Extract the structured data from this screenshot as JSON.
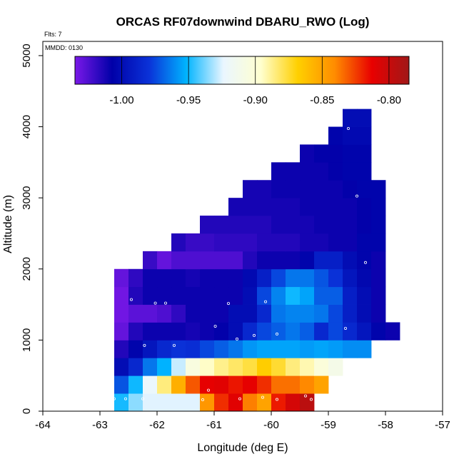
{
  "chart_data": {
    "type": "heatmap",
    "title": "ORCAS RF07downwind DBARU_RWO (Log)",
    "xlabel": "Longitude (deg E)",
    "ylabel": "Altitude (m)",
    "flights_label": "Flts: 7",
    "date_label": "MMDD: 0130",
    "xlim": [
      -64,
      -57
    ],
    "ylim": [
      0,
      5200
    ],
    "x_ticks": [
      -64,
      -63,
      -62,
      -61,
      -60,
      -59,
      -58,
      -57
    ],
    "x_tick_labels": [
      "-64",
      "-63",
      "-62",
      "-61",
      "-60",
      "-59",
      "-58",
      "-57"
    ],
    "y_ticks": [
      0,
      1000,
      2000,
      3000,
      4000,
      5000
    ],
    "y_tick_labels": [
      "0",
      "1000",
      "2000",
      "3000",
      "4000",
      "5000"
    ],
    "cell_width_deg": 0.25,
    "cell_height_m": 250,
    "colorbar": {
      "range": [
        -1.035,
        -0.785
      ],
      "ticks": [
        -1.0,
        -0.95,
        -0.9,
        -0.85,
        -0.8
      ],
      "tick_labels": [
        "-1.00",
        "-0.95",
        "-0.90",
        "-0.85",
        "-0.80"
      ],
      "stops": [
        "#7a18e8",
        "#0000a8",
        "#0a32d8",
        "#00b4ff",
        "#eaf6ff",
        "#ffffd0",
        "#ffd000",
        "#ff8c00",
        "#e80000",
        "#a01818"
      ]
    },
    "rows": [
      {
        "alt": 0,
        "cells": [
          [
            -62.75,
            -0.949
          ],
          [
            -62.5,
            -0.935
          ],
          [
            -62.25,
            -0.925
          ],
          [
            -62.0,
            -0.925
          ],
          [
            -61.75,
            -0.925
          ],
          [
            -61.5,
            -0.925
          ],
          [
            -61.25,
            -0.845
          ],
          [
            -61.0,
            -0.822
          ],
          [
            -60.75,
            -0.81
          ],
          [
            -60.5,
            -0.838
          ],
          [
            -60.25,
            -0.85
          ],
          [
            -60.0,
            -0.818
          ],
          [
            -59.75,
            -0.805
          ],
          [
            -59.5,
            -0.795
          ]
        ]
      },
      {
        "alt": 250,
        "cells": [
          [
            -62.75,
            -0.972
          ],
          [
            -62.5,
            -0.95
          ],
          [
            -62.25,
            -0.922
          ],
          [
            -62.0,
            -0.885
          ],
          [
            -61.75,
            -0.855
          ],
          [
            -61.5,
            -0.83
          ],
          [
            -61.25,
            -0.812
          ],
          [
            -61.0,
            -0.81
          ],
          [
            -60.75,
            -0.817
          ],
          [
            -60.5,
            -0.812
          ],
          [
            -60.25,
            -0.822
          ],
          [
            -60.0,
            -0.835
          ],
          [
            -59.75,
            -0.835
          ],
          [
            -59.5,
            -0.84
          ],
          [
            -59.25,
            -0.85
          ]
        ]
      },
      {
        "alt": 500,
        "cells": [
          [
            -62.75,
            -1.0
          ],
          [
            -62.5,
            -0.985
          ],
          [
            -62.25,
            -0.965
          ],
          [
            -62.0,
            -0.952
          ],
          [
            -61.75,
            -0.928
          ],
          [
            -61.5,
            -0.905
          ],
          [
            -61.25,
            -0.895
          ],
          [
            -61.0,
            -0.887
          ],
          [
            -60.75,
            -0.882
          ],
          [
            -60.5,
            -0.877
          ],
          [
            -60.25,
            -0.867
          ],
          [
            -60.0,
            -0.875
          ],
          [
            -59.75,
            -0.885
          ],
          [
            -59.5,
            -0.892
          ],
          [
            -59.25,
            -0.902
          ],
          [
            -59.0,
            -0.91
          ]
        ]
      },
      {
        "alt": 750,
        "cells": [
          [
            -62.75,
            -1.015
          ],
          [
            -62.5,
            -1.005
          ],
          [
            -62.25,
            -0.995
          ],
          [
            -62.0,
            -0.985
          ],
          [
            -61.75,
            -0.98
          ],
          [
            -61.5,
            -0.982
          ],
          [
            -61.25,
            -0.975
          ],
          [
            -61.0,
            -0.97
          ],
          [
            -60.75,
            -0.965
          ],
          [
            -60.5,
            -0.958
          ],
          [
            -60.25,
            -0.955
          ],
          [
            -60.0,
            -0.955
          ],
          [
            -59.75,
            -0.955
          ],
          [
            -59.5,
            -0.957
          ],
          [
            -59.25,
            -0.955
          ],
          [
            -59.0,
            -0.957
          ],
          [
            -58.75,
            -0.96
          ],
          [
            -58.5,
            -0.96
          ]
        ]
      },
      {
        "alt": 1000,
        "cells": [
          [
            -62.75,
            -1.03
          ],
          [
            -62.5,
            -1.015
          ],
          [
            -62.25,
            -1.01
          ],
          [
            -62.0,
            -1.01
          ],
          [
            -61.75,
            -1.01
          ],
          [
            -61.5,
            -1.012
          ],
          [
            -61.25,
            -1.01
          ],
          [
            -61.0,
            -1.008
          ],
          [
            -60.75,
            -1.0
          ],
          [
            -60.5,
            -0.985
          ],
          [
            -60.25,
            -0.975
          ],
          [
            -60.0,
            -0.97
          ],
          [
            -59.75,
            -0.965
          ],
          [
            -59.5,
            -0.97
          ],
          [
            -59.25,
            -0.985
          ],
          [
            -59.0,
            -0.975
          ],
          [
            -58.75,
            -0.985
          ],
          [
            -58.5,
            -0.995
          ],
          [
            -58.25,
            -1.005
          ],
          [
            -58.0,
            -1.01
          ]
        ]
      },
      {
        "alt": 1250,
        "cells": [
          [
            -62.75,
            -1.033
          ],
          [
            -62.5,
            -1.028
          ],
          [
            -62.25,
            -1.028
          ],
          [
            -62.0,
            -1.025
          ],
          [
            -61.75,
            -1.018
          ],
          [
            -61.5,
            -1.01
          ],
          [
            -61.25,
            -1.01
          ],
          [
            -61.0,
            -1.01
          ],
          [
            -60.75,
            -1.0
          ],
          [
            -60.5,
            -1.0
          ],
          [
            -60.25,
            -0.985
          ],
          [
            -60.0,
            -0.965
          ],
          [
            -59.75,
            -0.962
          ],
          [
            -59.5,
            -0.962
          ],
          [
            -59.25,
            -0.965
          ],
          [
            -59.0,
            -0.975
          ],
          [
            -58.75,
            -0.99
          ],
          [
            -58.5,
            -1.0
          ],
          [
            -58.25,
            -1.01
          ]
        ]
      },
      {
        "alt": 1500,
        "cells": [
          [
            -62.75,
            -1.033
          ],
          [
            -62.5,
            -1.015
          ],
          [
            -62.25,
            -1.01
          ],
          [
            -62.0,
            -1.01
          ],
          [
            -61.75,
            -1.01
          ],
          [
            -61.5,
            -1.01
          ],
          [
            -61.25,
            -1.01
          ],
          [
            -61.0,
            -1.01
          ],
          [
            -60.75,
            -1.01
          ],
          [
            -60.5,
            -1.0
          ],
          [
            -60.25,
            -0.975
          ],
          [
            -60.0,
            -0.962
          ],
          [
            -59.75,
            -0.95
          ],
          [
            -59.5,
            -0.955
          ],
          [
            -59.25,
            -0.97
          ],
          [
            -59.0,
            -0.97
          ],
          [
            -58.75,
            -0.99
          ],
          [
            -58.5,
            -1.0
          ],
          [
            -58.25,
            -1.01
          ]
        ]
      },
      {
        "alt": 1750,
        "cells": [
          [
            -62.75,
            -1.03
          ],
          [
            -62.5,
            -1.018
          ],
          [
            -62.25,
            -1.01
          ],
          [
            -62.0,
            -1.01
          ],
          [
            -61.75,
            -1.01
          ],
          [
            -61.5,
            -1.012
          ],
          [
            -61.25,
            -1.01
          ],
          [
            -61.0,
            -1.01
          ],
          [
            -60.75,
            -1.01
          ],
          [
            -60.5,
            -1.002
          ],
          [
            -60.25,
            -0.99
          ],
          [
            -60.0,
            -0.975
          ],
          [
            -59.75,
            -0.965
          ],
          [
            -59.5,
            -0.965
          ],
          [
            -59.25,
            -0.972
          ],
          [
            -59.0,
            -0.98
          ],
          [
            -58.75,
            -0.995
          ],
          [
            -58.5,
            -1.003
          ],
          [
            -58.25,
            -1.01
          ]
        ]
      },
      {
        "alt": 2000,
        "cells": [
          [
            -62.25,
            -1.02
          ],
          [
            -62.0,
            -1.03
          ],
          [
            -61.75,
            -1.025
          ],
          [
            -61.5,
            -1.025
          ],
          [
            -61.25,
            -1.025
          ],
          [
            -61.0,
            -1.025
          ],
          [
            -60.75,
            -1.025
          ],
          [
            -60.5,
            -1.015
          ],
          [
            -60.25,
            -1.01
          ],
          [
            -60.0,
            -1.01
          ],
          [
            -59.75,
            -1.01
          ],
          [
            -59.5,
            -1.005
          ],
          [
            -59.25,
            -0.99
          ],
          [
            -59.0,
            -0.99
          ],
          [
            -58.75,
            -1.0
          ],
          [
            -58.5,
            -1.005
          ],
          [
            -58.25,
            -1.01
          ]
        ]
      },
      {
        "alt": 2250,
        "cells": [
          [
            -61.75,
            -1.015
          ],
          [
            -61.5,
            -1.02
          ],
          [
            -61.25,
            -1.02
          ],
          [
            -61.0,
            -1.018
          ],
          [
            -60.75,
            -1.018
          ],
          [
            -60.5,
            -1.018
          ],
          [
            -60.25,
            -1.015
          ],
          [
            -60.0,
            -1.015
          ],
          [
            -59.75,
            -1.015
          ],
          [
            -59.5,
            -1.012
          ],
          [
            -59.25,
            -1.012
          ],
          [
            -59.0,
            -1.01
          ],
          [
            -58.75,
            -1.01
          ],
          [
            -58.5,
            -1.005
          ],
          [
            -58.25,
            -1.005
          ]
        ]
      },
      {
        "alt": 2500,
        "cells": [
          [
            -61.25,
            -1.015
          ],
          [
            -61.0,
            -1.015
          ],
          [
            -60.75,
            -1.015
          ],
          [
            -60.5,
            -1.015
          ],
          [
            -60.25,
            -1.015
          ],
          [
            -60.0,
            -1.012
          ],
          [
            -59.75,
            -1.012
          ],
          [
            -59.5,
            -1.012
          ],
          [
            -59.25,
            -1.01
          ],
          [
            -59.0,
            -1.01
          ],
          [
            -58.75,
            -1.01
          ],
          [
            -58.5,
            -1.008
          ],
          [
            -58.25,
            -1.005
          ]
        ]
      },
      {
        "alt": 2750,
        "cells": [
          [
            -60.75,
            -1.012
          ],
          [
            -60.5,
            -1.012
          ],
          [
            -60.25,
            -1.012
          ],
          [
            -60.0,
            -1.012
          ],
          [
            -59.75,
            -1.012
          ],
          [
            -59.5,
            -1.01
          ],
          [
            -59.25,
            -1.01
          ],
          [
            -59.0,
            -1.01
          ],
          [
            -58.75,
            -1.01
          ],
          [
            -58.5,
            -1.008
          ],
          [
            -58.25,
            -1.005
          ]
        ]
      },
      {
        "alt": 3000,
        "cells": [
          [
            -60.5,
            -1.012
          ],
          [
            -60.25,
            -1.012
          ],
          [
            -60.0,
            -1.01
          ],
          [
            -59.75,
            -1.01
          ],
          [
            -59.5,
            -1.01
          ],
          [
            -59.25,
            -1.01
          ],
          [
            -59.0,
            -1.01
          ],
          [
            -58.75,
            -1.008
          ],
          [
            -58.5,
            -1.005
          ],
          [
            -58.25,
            -1.005
          ]
        ]
      },
      {
        "alt": 3250,
        "cells": [
          [
            -60.0,
            -1.01
          ],
          [
            -59.75,
            -1.01
          ],
          [
            -59.5,
            -1.01
          ],
          [
            -59.25,
            -1.01
          ],
          [
            -59.0,
            -1.008
          ],
          [
            -58.75,
            -1.005
          ],
          [
            -58.5,
            -1.005
          ]
        ]
      },
      {
        "alt": 3500,
        "cells": [
          [
            -59.5,
            -1.01
          ],
          [
            -59.25,
            -1.008
          ],
          [
            -59.0,
            -1.008
          ],
          [
            -58.75,
            -1.005
          ],
          [
            -58.5,
            -1.005
          ]
        ]
      },
      {
        "alt": 3750,
        "cells": [
          [
            -59.0,
            -1.005
          ],
          [
            -58.75,
            -1.002
          ],
          [
            -58.5,
            -1.002
          ]
        ]
      },
      {
        "alt": 4000,
        "cells": [
          [
            -58.75,
            -1.0
          ],
          [
            -58.5,
            -1.0
          ]
        ]
      }
    ],
    "sample_points": [
      [
        -62.45,
        1570
      ],
      [
        -62.22,
        925
      ],
      [
        -62.03,
        1520
      ],
      [
        -61.85,
        1520
      ],
      [
        -61.7,
        925
      ],
      [
        -60.98,
        1195
      ],
      [
        -60.75,
        1515
      ],
      [
        -60.6,
        1015
      ],
      [
        -60.3,
        1065
      ],
      [
        -60.1,
        1540
      ],
      [
        -59.9,
        1085
      ],
      [
        -58.7,
        1165
      ],
      [
        -58.35,
        2090
      ],
      [
        -58.5,
        3025
      ],
      [
        -58.65,
        3975
      ],
      [
        -62.75,
        175
      ],
      [
        -62.55,
        175
      ],
      [
        -62.25,
        175
      ],
      [
        -62.8,
        640
      ],
      [
        -61.1,
        295
      ],
      [
        -61.2,
        160
      ],
      [
        -60.55,
        175
      ],
      [
        -60.15,
        195
      ],
      [
        -59.9,
        165
      ],
      [
        -59.4,
        215
      ],
      [
        -59.3,
        165
      ]
    ]
  }
}
